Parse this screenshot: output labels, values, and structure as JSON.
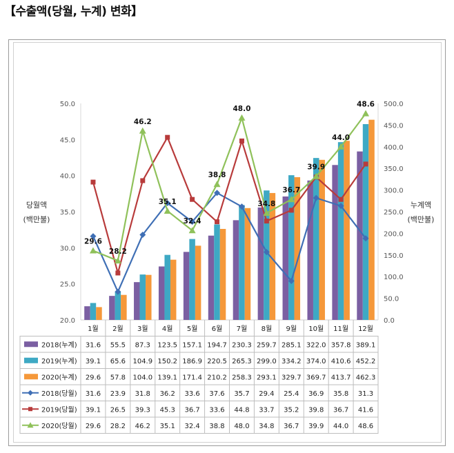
{
  "heading": "【수출액(당월, 누계) 변화】",
  "chart_data": {
    "type": "bar",
    "categories": [
      "1월",
      "2월",
      "3월",
      "4월",
      "5월",
      "6월",
      "7월",
      "8월",
      "9월",
      "10월",
      "11월",
      "12월"
    ],
    "left_axis": {
      "label": "당월액\n(백만불)",
      "ylim": [
        20,
        50
      ],
      "ticks": [
        "20.0",
        "25.0",
        "30.0",
        "35.0",
        "40.0",
        "45.0",
        "50.0"
      ]
    },
    "right_axis": {
      "label": "누계액\n(백만불)",
      "ylim": [
        0,
        500
      ],
      "ticks": [
        "0.0",
        "50.0",
        "100.0",
        "150.0",
        "200.0",
        "250.0",
        "300.0",
        "350.0",
        "400.0",
        "450.0",
        "500.0"
      ]
    },
    "series": [
      {
        "name": "2018(누계)",
        "kind": "bar",
        "axis": "right",
        "color": "#7b5fa2",
        "values": [
          31.6,
          55.5,
          87.3,
          123.5,
          157.1,
          194.7,
          230.3,
          259.7,
          285.1,
          322.0,
          357.8,
          389.1
        ]
      },
      {
        "name": "2019(누계)",
        "kind": "bar",
        "axis": "right",
        "color": "#3ea9c4",
        "values": [
          39.1,
          65.6,
          104.9,
          150.2,
          186.9,
          220.5,
          265.3,
          299.0,
          334.2,
          374.0,
          410.6,
          452.2
        ]
      },
      {
        "name": "2020(누계)",
        "kind": "bar",
        "axis": "right",
        "color": "#f5983a",
        "values": [
          29.6,
          57.8,
          104.0,
          139.1,
          171.4,
          210.2,
          258.3,
          293.1,
          329.7,
          369.7,
          413.7,
          462.3
        ]
      },
      {
        "name": "2018(당월)",
        "kind": "line",
        "axis": "left",
        "color": "#3f6fb5",
        "marker": "diamond",
        "values": [
          31.6,
          23.9,
          31.8,
          36.2,
          33.6,
          37.6,
          35.7,
          29.4,
          25.4,
          36.9,
          35.8,
          31.3
        ]
      },
      {
        "name": "2019(당월)",
        "kind": "line",
        "axis": "left",
        "color": "#b83b3b",
        "marker": "square",
        "values": [
          39.1,
          26.5,
          39.3,
          45.3,
          36.7,
          33.6,
          44.8,
          33.7,
          35.2,
          39.8,
          36.7,
          41.6
        ]
      },
      {
        "name": "2020(당월)",
        "kind": "line",
        "axis": "left",
        "color": "#8fc15a",
        "marker": "triangle",
        "values": [
          29.6,
          28.2,
          46.2,
          35.1,
          32.4,
          38.8,
          48.0,
          34.8,
          36.7,
          39.9,
          44.0,
          48.6
        ]
      }
    ],
    "data_labels": {
      "series": "2020(당월)",
      "values": [
        "29.6",
        "28.2",
        "46.2",
        "35.1",
        "32.4",
        "38.8",
        "48.0",
        "34.8",
        "36.7",
        "39.9",
        "44.0",
        "48.6"
      ]
    },
    "legend": "data-table-below",
    "grid": false
  }
}
